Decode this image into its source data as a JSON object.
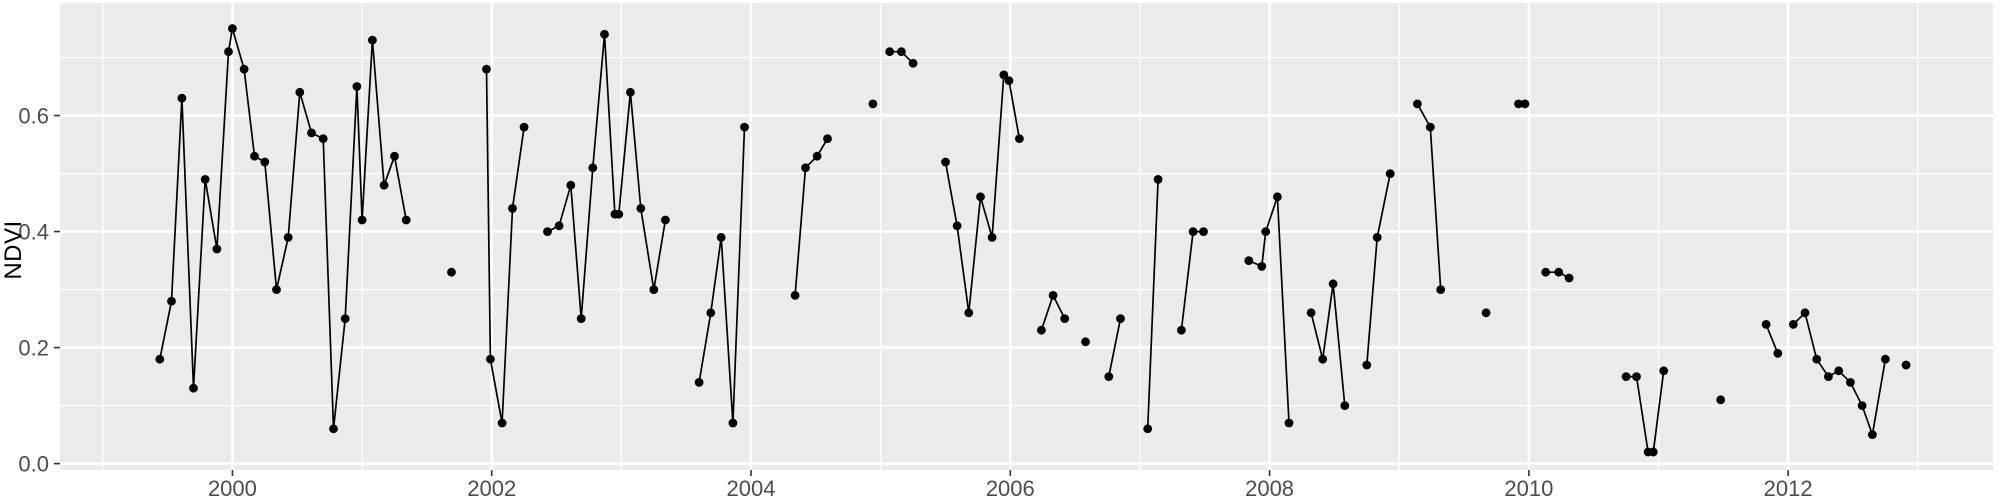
{
  "chart_data": {
    "type": "line",
    "title": "",
    "xlabel": "",
    "ylabel": "NDVI",
    "legend": "none",
    "grid": "on",
    "panel_style": "ggplot2-grey",
    "x_axis": {
      "tick_values": [
        2000,
        2002,
        2004,
        2006,
        2008,
        2010,
        2012
      ],
      "tick_labels": [
        "2000",
        "2002",
        "2004",
        "2006",
        "2008",
        "2010",
        "2012"
      ],
      "minor_tick_values": [
        1999,
        2001,
        2003,
        2005,
        2007,
        2009,
        2011,
        2013
      ],
      "range": [
        1998.67,
        2013.58
      ]
    },
    "y_axis": {
      "tick_values": [
        0.0,
        0.2,
        0.4,
        0.6
      ],
      "tick_labels": [
        "0.0",
        "0.2",
        "0.4",
        "0.6"
      ],
      "minor_tick_values": [
        0.1,
        0.3,
        0.5,
        0.7
      ],
      "range": [
        -0.011,
        0.794
      ]
    },
    "series_name": "NDVI",
    "segments": [
      [
        [
          1999.44,
          0.18
        ],
        [
          1999.53,
          0.28
        ],
        [
          1999.61,
          0.63
        ],
        [
          1999.7,
          0.13
        ],
        [
          1999.79,
          0.49
        ],
        [
          1999.88,
          0.37
        ],
        [
          1999.97,
          0.71
        ],
        [
          2000.0,
          0.75
        ],
        [
          2000.09,
          0.68
        ],
        [
          2000.17,
          0.53
        ],
        [
          2000.25,
          0.52
        ],
        [
          2000.34,
          0.3
        ],
        [
          2000.43,
          0.39
        ],
        [
          2000.52,
          0.64
        ],
        [
          2000.61,
          0.57
        ],
        [
          2000.7,
          0.56
        ],
        [
          2000.78,
          0.06
        ],
        [
          2000.87,
          0.25
        ],
        [
          2000.96,
          0.65
        ],
        [
          2001.0,
          0.42
        ],
        [
          2001.08,
          0.73
        ],
        [
          2001.17,
          0.48
        ],
        [
          2001.25,
          0.53
        ],
        [
          2001.34,
          0.42
        ]
      ],
      [
        [
          2001.69,
          0.33
        ]
      ],
      [
        [
          2001.96,
          0.68
        ],
        [
          2001.99,
          0.18
        ],
        [
          2002.08,
          0.07
        ],
        [
          2002.16,
          0.44
        ],
        [
          2002.25,
          0.58
        ]
      ],
      [
        [
          2002.43,
          0.4
        ],
        [
          2002.52,
          0.41
        ],
        [
          2002.61,
          0.48
        ],
        [
          2002.69,
          0.25
        ],
        [
          2002.78,
          0.51
        ],
        [
          2002.87,
          0.74
        ],
        [
          2002.95,
          0.43
        ],
        [
          2002.98,
          0.43
        ],
        [
          2003.07,
          0.64
        ],
        [
          2003.15,
          0.44
        ],
        [
          2003.25,
          0.3
        ],
        [
          2003.34,
          0.42
        ]
      ],
      [
        [
          2003.6,
          0.14
        ],
        [
          2003.69,
          0.26
        ],
        [
          2003.77,
          0.39
        ],
        [
          2003.86,
          0.07
        ],
        [
          2003.95,
          0.58
        ]
      ],
      [
        [
          2004.34,
          0.29
        ],
        [
          2004.42,
          0.51
        ],
        [
          2004.51,
          0.53
        ],
        [
          2004.59,
          0.56
        ]
      ],
      [
        [
          2004.94,
          0.62
        ]
      ],
      [
        [
          2005.07,
          0.71
        ],
        [
          2005.16,
          0.71
        ],
        [
          2005.25,
          0.69
        ]
      ],
      [
        [
          2005.5,
          0.52
        ],
        [
          2005.59,
          0.41
        ],
        [
          2005.68,
          0.26
        ],
        [
          2005.77,
          0.46
        ],
        [
          2005.86,
          0.39
        ],
        [
          2005.95,
          0.67
        ],
        [
          2005.99,
          0.66
        ],
        [
          2006.07,
          0.56
        ]
      ],
      [
        [
          2006.24,
          0.23
        ],
        [
          2006.33,
          0.29
        ],
        [
          2006.42,
          0.25
        ]
      ],
      [
        [
          2006.58,
          0.21
        ]
      ],
      [
        [
          2006.76,
          0.15
        ],
        [
          2006.85,
          0.25
        ]
      ],
      [
        [
          2007.06,
          0.06
        ],
        [
          2007.14,
          0.49
        ]
      ],
      [
        [
          2007.32,
          0.23
        ],
        [
          2007.41,
          0.4
        ],
        [
          2007.49,
          0.4
        ]
      ],
      [
        [
          2007.84,
          0.35
        ],
        [
          2007.94,
          0.34
        ],
        [
          2007.97,
          0.4
        ],
        [
          2008.06,
          0.46
        ],
        [
          2008.15,
          0.07
        ]
      ],
      [
        [
          2008.32,
          0.26
        ],
        [
          2008.41,
          0.18
        ],
        [
          2008.49,
          0.31
        ],
        [
          2008.58,
          0.1
        ]
      ],
      [
        [
          2008.75,
          0.17
        ],
        [
          2008.83,
          0.39
        ],
        [
          2008.93,
          0.5
        ]
      ],
      [
        [
          2009.14,
          0.62
        ],
        [
          2009.24,
          0.58
        ],
        [
          2009.32,
          0.3
        ]
      ],
      [
        [
          2009.67,
          0.26
        ]
      ],
      [
        [
          2009.92,
          0.62
        ],
        [
          2009.97,
          0.62
        ]
      ],
      [
        [
          2010.13,
          0.33
        ],
        [
          2010.23,
          0.33
        ],
        [
          2010.31,
          0.32
        ]
      ],
      [
        [
          2010.75,
          0.15
        ],
        [
          2010.83,
          0.15
        ],
        [
          2010.92,
          0.02
        ],
        [
          2010.96,
          0.02
        ],
        [
          2011.04,
          0.16
        ]
      ],
      [
        [
          2011.48,
          0.11
        ]
      ],
      [
        [
          2011.83,
          0.24
        ],
        [
          2011.92,
          0.19
        ]
      ],
      [
        [
          2012.04,
          0.24
        ],
        [
          2012.13,
          0.26
        ],
        [
          2012.22,
          0.18
        ],
        [
          2012.31,
          0.15
        ],
        [
          2012.39,
          0.16
        ],
        [
          2012.48,
          0.14
        ],
        [
          2012.57,
          0.1
        ],
        [
          2012.65,
          0.05
        ],
        [
          2012.75,
          0.18
        ]
      ],
      [
        [
          2012.91,
          0.17
        ]
      ]
    ],
    "colors": {
      "panel_background": "#EBEBEB",
      "grid_major": "#FFFFFF",
      "grid_minor": "#FFFFFF",
      "line": "#000000",
      "point": "#000000",
      "axis_text": "#4D4D4D",
      "tick_mark": "#333333",
      "outer_background": "#FFFFFF",
      "axis_title": "#000000"
    }
  }
}
